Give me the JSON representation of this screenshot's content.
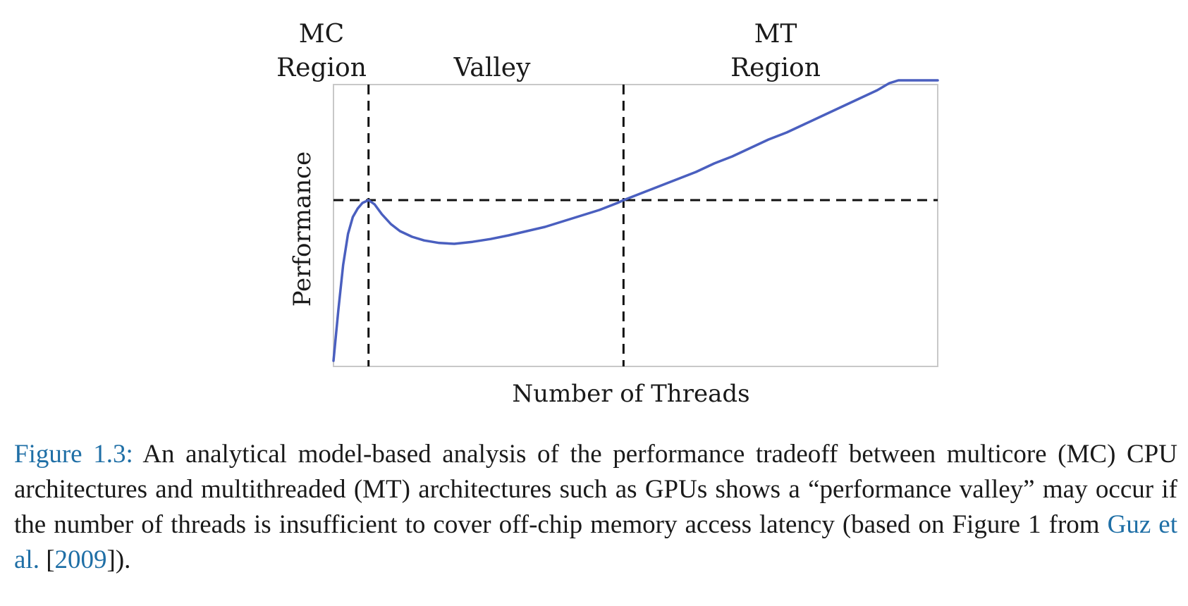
{
  "chart_data": {
    "type": "line",
    "xlabel": "Number of Threads",
    "ylabel": "Performance",
    "xlim": [
      0,
      100
    ],
    "ylim": [
      0,
      100
    ],
    "grid": false,
    "region_labels": {
      "mc": [
        "MC",
        "Region"
      ],
      "valley": [
        "Valley"
      ],
      "mt": [
        "MT",
        "Region"
      ]
    },
    "boundaries": {
      "mc_end": 5.8,
      "mt_start": 48
    },
    "reference_level": 59,
    "series": [
      {
        "color": "#4a5fbf",
        "x": [
          0,
          0.8,
          1.6,
          2.4,
          3.2,
          4.0,
          4.8,
          5.8,
          6.8,
          8,
          9.5,
          11,
          13,
          15,
          17.5,
          20,
          23,
          26,
          29,
          32,
          35,
          38,
          41,
          44,
          47,
          48,
          51,
          54,
          57,
          60,
          63,
          66,
          69,
          72,
          75,
          78,
          81,
          84,
          87,
          90,
          92,
          93.5,
          95,
          97,
          100
        ],
        "y": [
          2,
          20,
          36,
          47,
          53,
          56,
          58,
          59,
          57.5,
          54,
          50.5,
          48,
          46,
          44.7,
          43.8,
          43.5,
          44.2,
          45.2,
          46.5,
          48,
          49.5,
          51.5,
          53.5,
          55.5,
          58,
          59,
          61.5,
          64,
          66.5,
          69,
          72,
          74.5,
          77.5,
          80.5,
          83,
          86,
          89,
          92,
          95,
          98,
          100.5,
          101.5,
          101.5,
          101.5,
          101.5
        ]
      }
    ]
  },
  "caption": {
    "label": "Figure 1.3:",
    "text_1": " An analytical model-based analysis of the performance tradeoff between multicore (MC) CPU architectures and multithreaded (MT) architectures such as GPUs shows a “performance valley” may occur if the number of threads is insufficient to cover off-chip memory access latency (based on Figure 1 from ",
    "citation_author": "Guz et al.",
    "citation_open": " [",
    "citation_year": "2009",
    "citation_close": "])."
  }
}
